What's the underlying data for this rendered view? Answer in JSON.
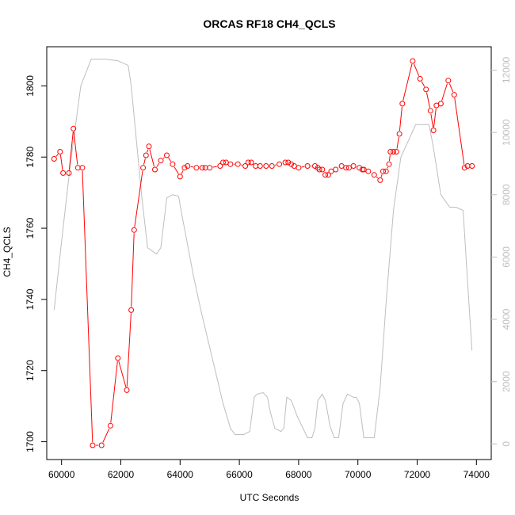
{
  "chart_data": {
    "type": "line",
    "title": "ORCAS RF18 CH4_QCLS",
    "xlabel": "UTC Seconds",
    "ylabel": "CH4_QCLS",
    "xlim": [
      59500,
      74500
    ],
    "ylim": [
      1695,
      1811
    ],
    "y2lim": [
      -500,
      12750
    ],
    "x_ticks": [
      60000,
      62000,
      64000,
      66000,
      68000,
      70000,
      72000,
      74000
    ],
    "y_ticks": [
      1700,
      1720,
      1740,
      1760,
      1780,
      1800
    ],
    "y2_ticks": [
      0,
      2000,
      4000,
      6000,
      8000,
      10000,
      12000
    ],
    "colors": {
      "ch4": "#ff0000",
      "secondary": "#bebebe",
      "axis": "#000000"
    },
    "series": [
      {
        "color": "#ff0000",
        "axis": "left",
        "marker": "open-circle",
        "x": [
          59750,
          59950,
          60050,
          60250,
          60400,
          60550,
          60700,
          61050,
          61350,
          61650,
          61900,
          62200,
          62350,
          62450,
          62750,
          62850,
          62950,
          63150,
          63350,
          63550,
          63750,
          64000,
          64150,
          64250,
          64550,
          64750,
          64850,
          65000,
          65350,
          65450,
          65550,
          65700,
          65950,
          66200,
          66300,
          66400,
          66550,
          66700,
          66900,
          67100,
          67350,
          67550,
          67650,
          67750,
          67850,
          68000,
          68300,
          68550,
          68650,
          68700,
          68800,
          68900,
          69000,
          69100,
          69250,
          69450,
          69600,
          69700,
          69850,
          70050,
          70150,
          70200,
          70350,
          70550,
          70750,
          70850,
          70950,
          71050,
          71100,
          71200,
          71300,
          71400,
          71500,
          71850,
          72100,
          72300,
          72450,
          72550,
          72650,
          72800,
          73050,
          73250,
          73600,
          73700,
          73850
        ],
        "y": [
          1779.5,
          1781.5,
          1775.5,
          1775.5,
          1788.0,
          1777.0,
          1777.0,
          1699.0,
          1699.0,
          1704.5,
          1723.5,
          1714.5,
          1737.0,
          1759.5,
          1777.0,
          1780.5,
          1783.0,
          1776.5,
          1779.0,
          1780.5,
          1778.0,
          1774.5,
          1777.0,
          1777.5,
          1777.0,
          1777.0,
          1777.0,
          1777.0,
          1777.5,
          1778.5,
          1778.5,
          1778.0,
          1778.0,
          1777.5,
          1778.5,
          1778.5,
          1777.5,
          1777.5,
          1777.5,
          1777.5,
          1778.0,
          1778.5,
          1778.5,
          1778.0,
          1777.5,
          1777.0,
          1777.5,
          1777.5,
          1777.0,
          1776.5,
          1776.5,
          1775.0,
          1775.0,
          1776.0,
          1776.5,
          1777.5,
          1777.0,
          1777.0,
          1777.5,
          1777.0,
          1776.5,
          1776.5,
          1776.0,
          1775.0,
          1773.5,
          1776.0,
          1776.0,
          1778.0,
          1781.5,
          1781.5,
          1781.5,
          1786.5,
          1795.0,
          1807.0,
          1802.0,
          1799.0,
          1793.0,
          1787.5,
          1794.5,
          1795.0,
          1801.5,
          1797.5,
          1777.0,
          1777.5,
          1777.5
        ]
      },
      {
        "color": "#bebebe",
        "axis": "right",
        "marker": "none",
        "x": [
          59750,
          60000,
          60300,
          60650,
          61000,
          61500,
          61900,
          62250,
          62350,
          62500,
          62700,
          62900,
          63050,
          63200,
          63350,
          63550,
          63750,
          63950,
          64050,
          64250,
          64450,
          64700,
          64950,
          65200,
          65450,
          65700,
          65850,
          65950,
          66150,
          66350,
          66500,
          66600,
          66800,
          66950,
          67050,
          67200,
          67400,
          67500,
          67600,
          67750,
          67950,
          68300,
          68450,
          68550,
          68650,
          68800,
          68900,
          69000,
          69050,
          69200,
          69350,
          69500,
          69650,
          69850,
          69950,
          70050,
          70200,
          70350,
          70550,
          70750,
          70950,
          71200,
          71450,
          71950,
          72400,
          72550,
          72800,
          73100,
          73300,
          73550,
          73750,
          73850
        ],
        "y": [
          4300,
          6500,
          9000,
          11500,
          12350,
          12350,
          12300,
          12150,
          11500,
          10000,
          8000,
          6300,
          6200,
          6100,
          6300,
          7900,
          8000,
          7950,
          7400,
          6400,
          5400,
          4300,
          3300,
          2300,
          1300,
          500,
          300,
          300,
          300,
          400,
          1500,
          1600,
          1650,
          1500,
          1000,
          500,
          400,
          500,
          1500,
          1400,
          900,
          200,
          200,
          500,
          1400,
          1600,
          1400,
          900,
          600,
          200,
          200,
          1300,
          1600,
          1500,
          1500,
          1300,
          200,
          200,
          200,
          1800,
          4500,
          7500,
          9200,
          10250,
          10250,
          9500,
          8000,
          7600,
          7600,
          7500,
          4500,
          3000
        ]
      }
    ]
  }
}
